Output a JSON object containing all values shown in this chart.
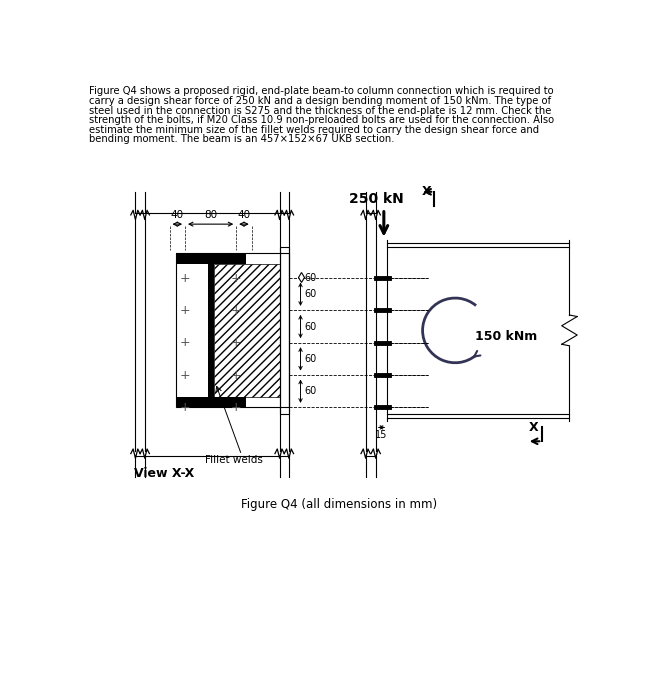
{
  "title_text": "Figure Q4 (all dimensions in mm)",
  "lines": [
    "Figure Q4 shows a proposed rigid, end-plate beam-to column connection which is required to",
    "carry a design shear force of 250 kN and a design bending moment of 150 kNm. The type of",
    "steel used in the connection is S275 and the thickness of the end-plate is 12 mm. Check the",
    "strength of the bolts, if M20 Class 10.9 non-preloaded bolts are used for the connection. Also",
    "estimate the minimum size of the fillet welds required to carry the design shear force and",
    "bending moment. The beam is an 457×152×67 UKB section."
  ],
  "dim_labels": [
    "40",
    "80",
    "40"
  ],
  "bolt_spacings": [
    "60",
    "60",
    "60",
    "60",
    "60"
  ],
  "label_250kN": "250 kN",
  "label_150kNm": "150 kNm",
  "label_15": "15",
  "label_fillet": "Fillet welds",
  "label_viewxx": "View X-X",
  "bg_color": "#ffffff",
  "lc": "#000000"
}
